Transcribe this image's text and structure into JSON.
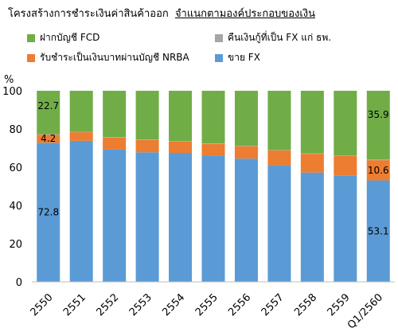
{
  "chart_data": {
    "type": "bar",
    "stacked": true,
    "title": "โครงสร้างการชำระเงินค่าสินค้าออก",
    "subtitle": "จำแนกตามองค์ประกอบของเงิน",
    "ylabel": "%",
    "ylim": [
      0,
      100
    ],
    "yticks": [
      "0",
      "20",
      "40",
      "60",
      "80",
      "100"
    ],
    "grid": false,
    "legend_position": "top",
    "categories": [
      "2550",
      "2551",
      "2552",
      "2553",
      "2554",
      "2555",
      "2556",
      "2557",
      "2558",
      "2559",
      "Q1/2560"
    ],
    "series": [
      {
        "name": "ขาย FX",
        "color": "#5b9bd5",
        "values": [
          72.8,
          73.8,
          69.2,
          67.8,
          67.5,
          66.2,
          64.5,
          61.0,
          57.2,
          55.5,
          53.1
        ]
      },
      {
        "name": "รับชำระเป็นเงินบาทผ่านบัญชี NRBA",
        "color": "#ed7d31",
        "values": [
          4.2,
          4.5,
          6.3,
          6.5,
          6.0,
          6.0,
          6.5,
          7.8,
          9.8,
          10.5,
          10.6
        ]
      },
      {
        "name": "คืนเงินกู้ที่เป็น FX แก่ ธพ.",
        "color": "#a5a5a5",
        "values": [
          0.3,
          0.2,
          0.2,
          0.2,
          0.2,
          0.2,
          0.2,
          0.2,
          0.2,
          0.2,
          0.4
        ]
      },
      {
        "name": "ฝากบัญชี FCD",
        "color": "#70ad47",
        "values": [
          22.7,
          21.5,
          24.3,
          25.5,
          26.3,
          27.6,
          28.8,
          31.0,
          32.8,
          33.8,
          35.9
        ]
      }
    ],
    "data_labels": [
      {
        "category": "2550",
        "series": "ขาย FX",
        "text": "72.8"
      },
      {
        "category": "2550",
        "series": "รับชำระเป็นเงินบาทผ่านบัญชี NRBA",
        "text": "4.2"
      },
      {
        "category": "2550",
        "series": "ฝากบัญชี FCD",
        "text": "22.7"
      },
      {
        "category": "Q1/2560",
        "series": "ขาย FX",
        "text": "53.1"
      },
      {
        "category": "Q1/2560",
        "series": "รับชำระเป็นเงินบาทผ่านบัญชี NRBA",
        "text": "10.6"
      },
      {
        "category": "Q1/2560",
        "series": "ฝากบัญชี FCD",
        "text": "35.9"
      }
    ]
  }
}
